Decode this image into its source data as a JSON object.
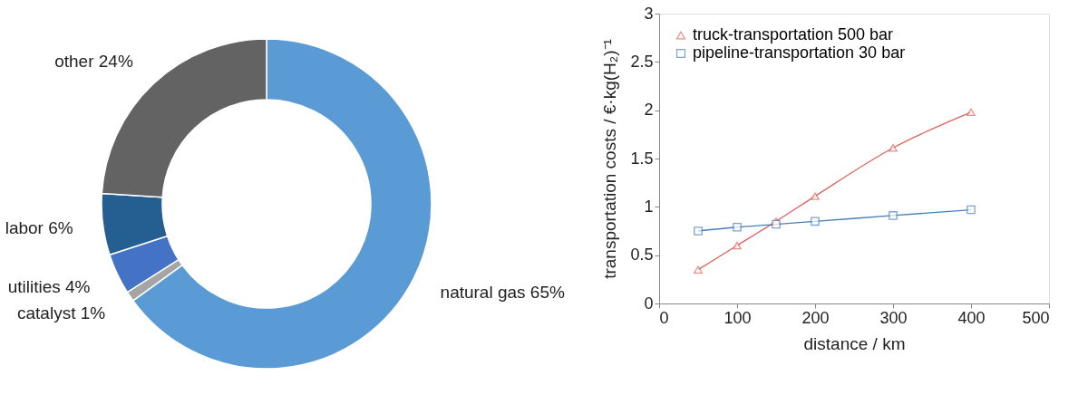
{
  "chart_data": [
    {
      "type": "donut",
      "categories": [
        "natural gas",
        "catalyst",
        "utilities",
        "labor",
        "other"
      ],
      "values": [
        65,
        1,
        4,
        6,
        24
      ],
      "colors": [
        "#5b9bd5",
        "#a5a5a5",
        "#4472c4",
        "#255e91",
        "#636363"
      ],
      "value_labels": [
        "65%",
        "1%",
        "4%",
        "6%",
        "24%"
      ]
    },
    {
      "type": "line",
      "xlabel": "distance / km",
      "ylabel": "transportation costs / €·kg(H₂)⁻¹",
      "xlim": [
        0,
        500
      ],
      "xticks": [
        0,
        100,
        200,
        300,
        400,
        500
      ],
      "ylim": [
        0,
        3
      ],
      "yticks": [
        0,
        0.5,
        1,
        1.5,
        2,
        2.5,
        3
      ],
      "grid": false,
      "legend": "top left",
      "x": [
        50,
        100,
        150,
        200,
        300,
        400
      ],
      "series": [
        {
          "name": "truck-transportation 500 bar",
          "color": "#e0625a",
          "marker": "triangle",
          "values": [
            0.35,
            0.6,
            0.85,
            1.11,
            1.61,
            1.98
          ]
        },
        {
          "name": "pipeline-transportation 30 bar",
          "color": "#4a7ebb",
          "marker": "square",
          "values": [
            0.75,
            0.79,
            0.82,
            0.85,
            0.91,
            0.97
          ]
        }
      ]
    }
  ]
}
